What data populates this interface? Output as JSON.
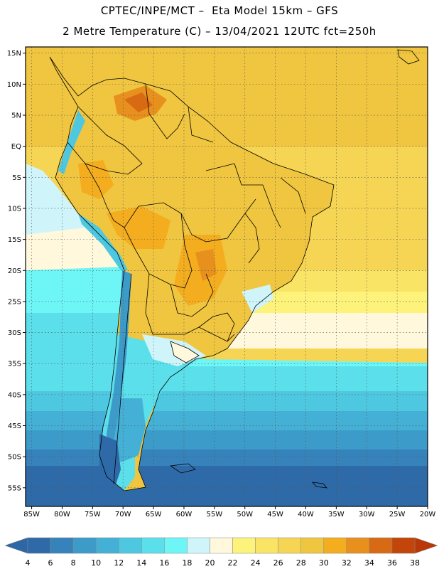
{
  "header": {
    "line1": "CPTEC/INPE/MCT –  Eta Model 15km – GFS",
    "line2": "2 Metre Temperature (C) – 13/04/2021 12UTC fct=250h"
  },
  "map": {
    "lon_range": [
      -86,
      -20
    ],
    "lat_range": [
      -58,
      16
    ],
    "lat_ticks": [
      {
        "value": 15,
        "label": "15N"
      },
      {
        "value": 10,
        "label": "10N"
      },
      {
        "value": 5,
        "label": "5N"
      },
      {
        "value": 0,
        "label": "EQ"
      },
      {
        "value": -5,
        "label": "5S"
      },
      {
        "value": -10,
        "label": "10S"
      },
      {
        "value": -15,
        "label": "15S"
      },
      {
        "value": -20,
        "label": "20S"
      },
      {
        "value": -25,
        "label": "25S"
      },
      {
        "value": -30,
        "label": "30S"
      },
      {
        "value": -35,
        "label": "35S"
      },
      {
        "value": -40,
        "label": "40S"
      },
      {
        "value": -45,
        "label": "45S"
      },
      {
        "value": -50,
        "label": "50S"
      },
      {
        "value": -55,
        "label": "55S"
      }
    ],
    "lon_ticks": [
      {
        "value": -85,
        "label": "85W"
      },
      {
        "value": -80,
        "label": "80W"
      },
      {
        "value": -75,
        "label": "75W"
      },
      {
        "value": -70,
        "label": "70W"
      },
      {
        "value": -65,
        "label": "65W"
      },
      {
        "value": -60,
        "label": "60W"
      },
      {
        "value": -55,
        "label": "55W"
      },
      {
        "value": -50,
        "label": "50W"
      },
      {
        "value": -45,
        "label": "45W"
      },
      {
        "value": -40,
        "label": "40W"
      },
      {
        "value": -35,
        "label": "35W"
      },
      {
        "value": -30,
        "label": "30W"
      },
      {
        "value": -25,
        "label": "25W"
      },
      {
        "value": -20,
        "label": "20W"
      }
    ]
  },
  "colorbar": {
    "low_color": "#2f66a6",
    "high_color": "#b8380a",
    "bins": [
      {
        "color": "#2f6aa8"
      },
      {
        "color": "#3682bb"
      },
      {
        "color": "#3d9bc9"
      },
      {
        "color": "#45b0d6"
      },
      {
        "color": "#4ec8e0"
      },
      {
        "color": "#5bdfea"
      },
      {
        "color": "#6ef6f6"
      },
      {
        "color": "#cff5fb"
      },
      {
        "color": "#fff8dc"
      },
      {
        "color": "#fdf27a"
      },
      {
        "color": "#f9e466"
      },
      {
        "color": "#f5d553"
      },
      {
        "color": "#f0c540"
      },
      {
        "color": "#f3ad1e"
      },
      {
        "color": "#e8901d"
      },
      {
        "color": "#d96a14"
      },
      {
        "color": "#c4450a"
      }
    ],
    "labels": [
      "4",
      "6",
      "8",
      "10",
      "12",
      "14",
      "16",
      "18",
      "20",
      "22",
      "24",
      "26",
      "28",
      "30",
      "32",
      "34",
      "36",
      "38"
    ]
  }
}
